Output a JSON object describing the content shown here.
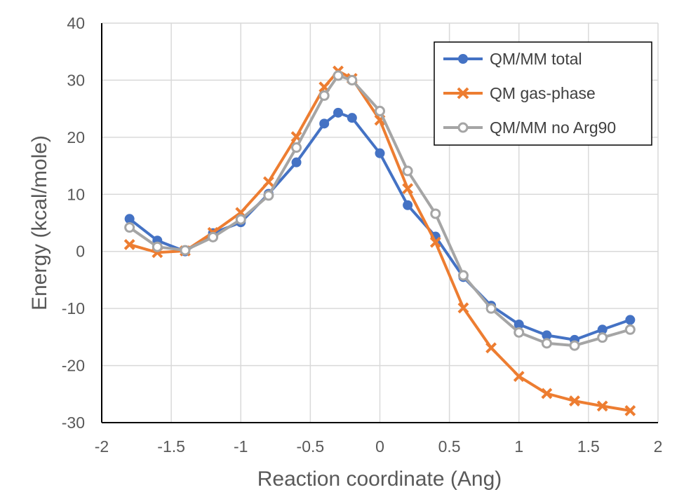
{
  "chart_data": {
    "type": "line",
    "title": "",
    "xlabel": "Reaction coordinate (Ang)",
    "ylabel": "Energy (kcal/mole)",
    "xlim": [
      -2,
      2
    ],
    "ylim": [
      -30,
      40
    ],
    "xticks": [
      -2,
      -1.5,
      -1,
      -0.5,
      0,
      0.5,
      1,
      1.5,
      2
    ],
    "yticks": [
      -30,
      -20,
      -10,
      0,
      10,
      20,
      30,
      40
    ],
    "xtick_labels": [
      "-2",
      "-1.5",
      "-1",
      "-0.5",
      "0",
      "0.5",
      "1",
      "1.5",
      "2"
    ],
    "ytick_labels": [
      "-30",
      "-20",
      "-10",
      "0",
      "10",
      "20",
      "30",
      "40"
    ],
    "grid": true,
    "legend_position": "top-right",
    "series": [
      {
        "name": "QM/MM total",
        "color": "#4472C4",
        "marker": "filled-circle",
        "x": [
          -1.8,
          -1.6,
          -1.4,
          -1.2,
          -1.0,
          -0.8,
          -0.6,
          -0.4,
          -0.3,
          -0.2,
          0.0,
          0.2,
          0.4,
          0.6,
          0.8,
          1.0,
          1.2,
          1.4,
          1.6,
          1.8
        ],
        "y": [
          5.7,
          1.9,
          0.0,
          3.2,
          5.1,
          10.1,
          15.6,
          22.4,
          24.3,
          23.4,
          17.2,
          8.1,
          2.6,
          -4.5,
          -9.5,
          -12.8,
          -14.7,
          -15.5,
          -13.7,
          -12.0
        ]
      },
      {
        "name": "QM gas-phase",
        "color": "#ED7D31",
        "marker": "x",
        "x": [
          -1.8,
          -1.6,
          -1.4,
          -1.2,
          -1.0,
          -0.8,
          -0.6,
          -0.4,
          -0.3,
          -0.2,
          0.0,
          0.2,
          0.4,
          0.6,
          0.8,
          1.0,
          1.2,
          1.4,
          1.6,
          1.8
        ],
        "y": [
          1.2,
          -0.2,
          0.1,
          3.3,
          6.8,
          12.2,
          20.1,
          28.8,
          31.6,
          30.3,
          23.0,
          11.0,
          1.6,
          -9.9,
          -16.9,
          -21.9,
          -24.9,
          -26.2,
          -27.1,
          -27.9
        ]
      },
      {
        "name": "QM/MM no Arg90",
        "color": "#A5A5A5",
        "marker": "open-circle",
        "x": [
          -1.8,
          -1.6,
          -1.4,
          -1.2,
          -1.0,
          -0.8,
          -0.6,
          -0.4,
          -0.3,
          -0.2,
          0.0,
          0.2,
          0.4,
          0.6,
          0.8,
          1.0,
          1.2,
          1.4,
          1.6,
          1.8
        ],
        "y": [
          4.2,
          0.8,
          0.2,
          2.5,
          5.6,
          9.8,
          18.2,
          27.3,
          30.8,
          30.0,
          24.6,
          14.1,
          6.6,
          -4.2,
          -10.0,
          -14.2,
          -16.1,
          -16.5,
          -15.1,
          -13.7
        ]
      }
    ]
  }
}
